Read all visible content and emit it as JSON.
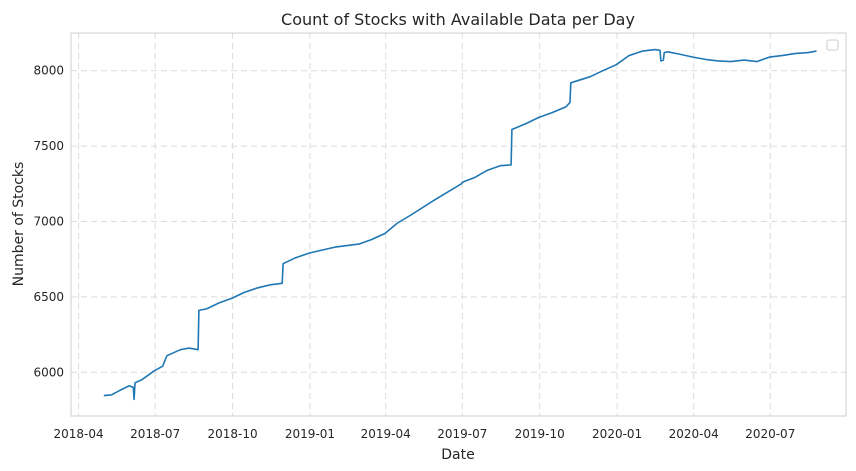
{
  "chart_data": {
    "type": "line",
    "title": "Count of Stocks with Available Data per Day",
    "xlabel": "Date",
    "ylabel": "Number of Stocks",
    "grid": true,
    "legend": "top-right",
    "line_color": "#1f77b4",
    "x_ticks": [
      "2018-04",
      "2018-07",
      "2018-10",
      "2019-01",
      "2019-04",
      "2019-07",
      "2019-10",
      "2020-01",
      "2020-04",
      "2020-07"
    ],
    "y_ticks": [
      6000,
      6500,
      7000,
      7500,
      8000
    ],
    "xlim": [
      "2018-03-23",
      "2020-09-29"
    ],
    "ylim": [
      5710,
      8250
    ],
    "series": [
      {
        "x": [
          "2018-05-01",
          "2018-05-10",
          "2018-05-20",
          "2018-05-31",
          "2018-06-05",
          "2018-06-06",
          "2018-06-07",
          "2018-06-15",
          "2018-06-30",
          "2018-07-10",
          "2018-07-15",
          "2018-07-31",
          "2018-08-10",
          "2018-08-21",
          "2018-08-22",
          "2018-08-31",
          "2018-09-15",
          "2018-09-30",
          "2018-10-15",
          "2018-10-31",
          "2018-11-15",
          "2018-11-29",
          "2018-11-30",
          "2018-12-15",
          "2018-12-31",
          "2019-01-15",
          "2019-01-31",
          "2019-02-28",
          "2019-03-15",
          "2019-03-31",
          "2019-04-15",
          "2019-04-30",
          "2019-05-31",
          "2019-06-30",
          "2019-07-01",
          "2019-07-15",
          "2019-07-31",
          "2019-08-15",
          "2019-08-28",
          "2019-08-29",
          "2019-09-15",
          "2019-09-30",
          "2019-10-15",
          "2019-11-01",
          "2019-11-06",
          "2019-11-07",
          "2019-11-30",
          "2019-12-15",
          "2019-12-31",
          "2020-01-15",
          "2020-01-31",
          "2020-02-15",
          "2020-02-21",
          "2020-02-22",
          "2020-02-25",
          "2020-02-26",
          "2020-03-01",
          "2020-03-15",
          "2020-03-31",
          "2020-04-15",
          "2020-04-30",
          "2020-05-15",
          "2020-05-31",
          "2020-06-15",
          "2020-06-30",
          "2020-07-15",
          "2020-07-31",
          "2020-08-15",
          "2020-08-25"
        ],
        "y": [
          5845,
          5850,
          5880,
          5910,
          5900,
          5820,
          5930,
          5950,
          6010,
          6040,
          6110,
          6150,
          6160,
          6150,
          6410,
          6420,
          6460,
          6490,
          6530,
          6560,
          6580,
          6590,
          6720,
          6760,
          6790,
          6810,
          6830,
          6850,
          6880,
          6920,
          6990,
          7040,
          7150,
          7250,
          7260,
          7290,
          7340,
          7370,
          7375,
          7610,
          7650,
          7690,
          7720,
          7760,
          7790,
          7920,
          7960,
          8000,
          8040,
          8100,
          8130,
          8140,
          8135,
          8065,
          8070,
          8120,
          8125,
          8110,
          8090,
          8075,
          8065,
          8060,
          8070,
          8060,
          8090,
          8100,
          8115,
          8120,
          8130
        ]
      }
    ]
  }
}
